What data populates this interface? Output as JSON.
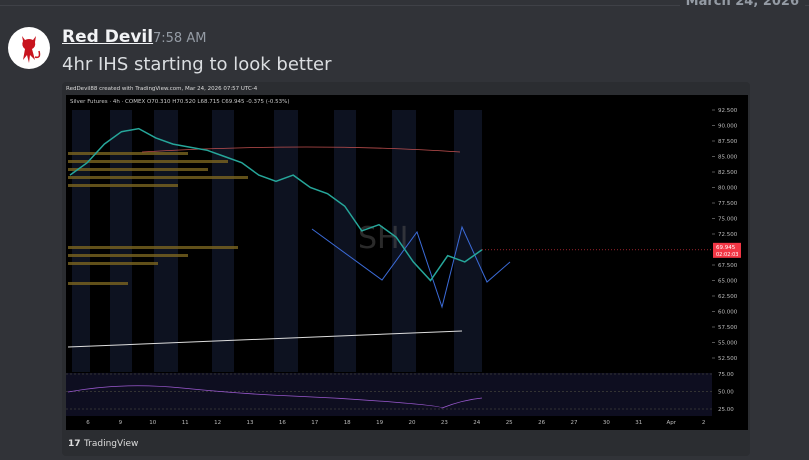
{
  "date_divider": "March 24, 2026",
  "message": {
    "author": "Red Devil",
    "time": "7:58 AM",
    "content": "4hr IHS starting to look better"
  },
  "embed": {
    "header": "RedDevil88 created with TradingView.com, Mar 24, 2026 07:57 UTC-4",
    "legend": "Silver Futures · 4h · COMEX  O70.310 H70.520 L68.715 C69.945 -0.375 (-0.53%)",
    "watermark": "SHI",
    "brand": "TradingView",
    "price_axis": {
      "lim": [
        92.5,
        52.5
      ],
      "ticks": [
        {
          "value": 92.5,
          "label": "92.500"
        },
        {
          "value": 90,
          "label": "90.000"
        },
        {
          "value": 87.5,
          "label": "87.500"
        },
        {
          "value": 85,
          "label": "85.000"
        },
        {
          "value": 82.5,
          "label": "82.500"
        },
        {
          "value": 80,
          "label": "80.000"
        },
        {
          "value": 77.5,
          "label": "77.500"
        },
        {
          "value": 75,
          "label": "75.000"
        },
        {
          "value": 72.5,
          "label": "72.500"
        },
        {
          "value": 67.5,
          "label": "67.500"
        },
        {
          "value": 65,
          "label": "65.000"
        },
        {
          "value": 62.5,
          "label": "62.500"
        },
        {
          "value": 60,
          "label": "60.000"
        },
        {
          "value": 57.5,
          "label": "57.500"
        },
        {
          "value": 55,
          "label": "55.000"
        },
        {
          "value": 52.5,
          "label": "52.500"
        }
      ]
    },
    "last_price": {
      "value": 69.945,
      "label": "69.945",
      "countdown": "02:02:03"
    },
    "price_path": [
      82,
      84,
      87,
      89,
      89.5,
      88,
      87,
      86.5,
      86,
      85,
      84,
      82,
      81,
      82,
      80,
      79,
      77,
      73,
      74,
      72,
      68,
      65,
      69,
      68,
      69.945
    ],
    "rsi_axis": {
      "lim": [
        75,
        25
      ],
      "ticks": [
        {
          "value": 75,
          "label": "75.00"
        },
        {
          "value": 50,
          "label": "50.00"
        },
        {
          "value": 25,
          "label": "25.00"
        }
      ]
    },
    "date_axis": [
      "6",
      "9",
      "10",
      "11",
      "12",
      "13",
      "16",
      "17",
      "18",
      "19",
      "20",
      "23",
      "24",
      "25",
      "26",
      "27",
      "30",
      "31",
      "Apr",
      "2"
    ]
  }
}
